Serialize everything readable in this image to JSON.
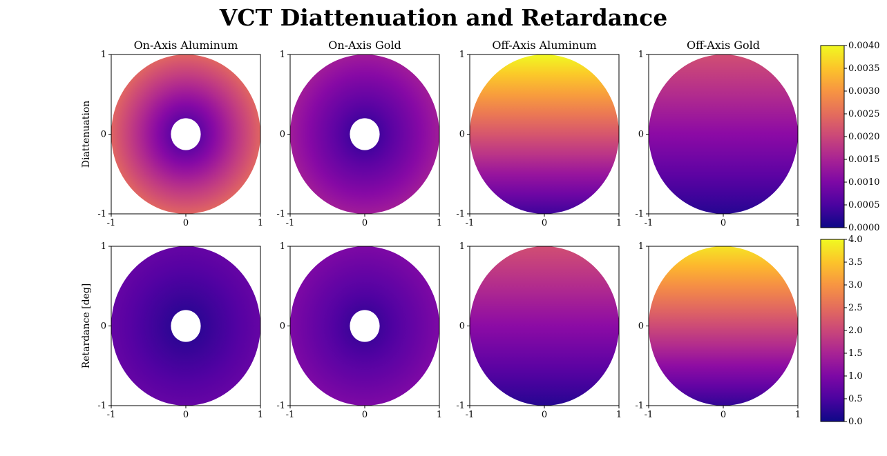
{
  "chart_data": {
    "type": "heatmap",
    "title": "VCT Diattenuation and Retardance",
    "columns": [
      "On-Axis Aluminum",
      "On-Axis Gold",
      "Off-Axis Aluminum",
      "Off-Axis Gold"
    ],
    "rows": [
      {
        "ylabel": "Diattenuation",
        "colorbar": {
          "colormap": "plasma",
          "range": [
            0,
            0.004
          ],
          "ticks": [
            "0.0000",
            "0.0005",
            "0.0010",
            "0.0015",
            "0.0020",
            "0.0025",
            "0.0030",
            "0.0035",
            "0.0040"
          ]
        },
        "panels": [
          {
            "pattern": "radial",
            "obscuration_radius": 0.2,
            "center_value": 0.0003,
            "edge_value": 0.0024
          },
          {
            "pattern": "radial",
            "obscuration_radius": 0.2,
            "center_value": 0.0002,
            "edge_value": 0.0014
          },
          {
            "pattern": "linear_y",
            "bottom_value": 0.0004,
            "top_value": 0.004
          },
          {
            "pattern": "linear_y",
            "bottom_value": 0.0002,
            "top_value": 0.0021
          }
        ]
      },
      {
        "ylabel": "Retardance [deg]",
        "colorbar": {
          "colormap": "plasma",
          "range": [
            0,
            4
          ],
          "ticks": [
            "0.0",
            "0.5",
            "1.0",
            "1.5",
            "2.0",
            "2.5",
            "3.0",
            "3.5",
            "4.0"
          ]
        },
        "panels": [
          {
            "pattern": "radial",
            "obscuration_radius": 0.2,
            "center_value": 0.15,
            "edge_value": 0.75
          },
          {
            "pattern": "radial",
            "obscuration_radius": 0.2,
            "center_value": 0.25,
            "edge_value": 1.0
          },
          {
            "pattern": "linear_y",
            "bottom_value": 0.2,
            "top_value": 2.1
          },
          {
            "pattern": "linear_y",
            "bottom_value": 0.3,
            "top_value": 3.8
          }
        ]
      }
    ],
    "axes": {
      "xlim": [
        -1,
        1
      ],
      "ylim": [
        -1,
        1
      ],
      "xticks": [
        "-1",
        "0",
        "1"
      ],
      "yticks": [
        "-1",
        "0",
        "1"
      ]
    }
  }
}
